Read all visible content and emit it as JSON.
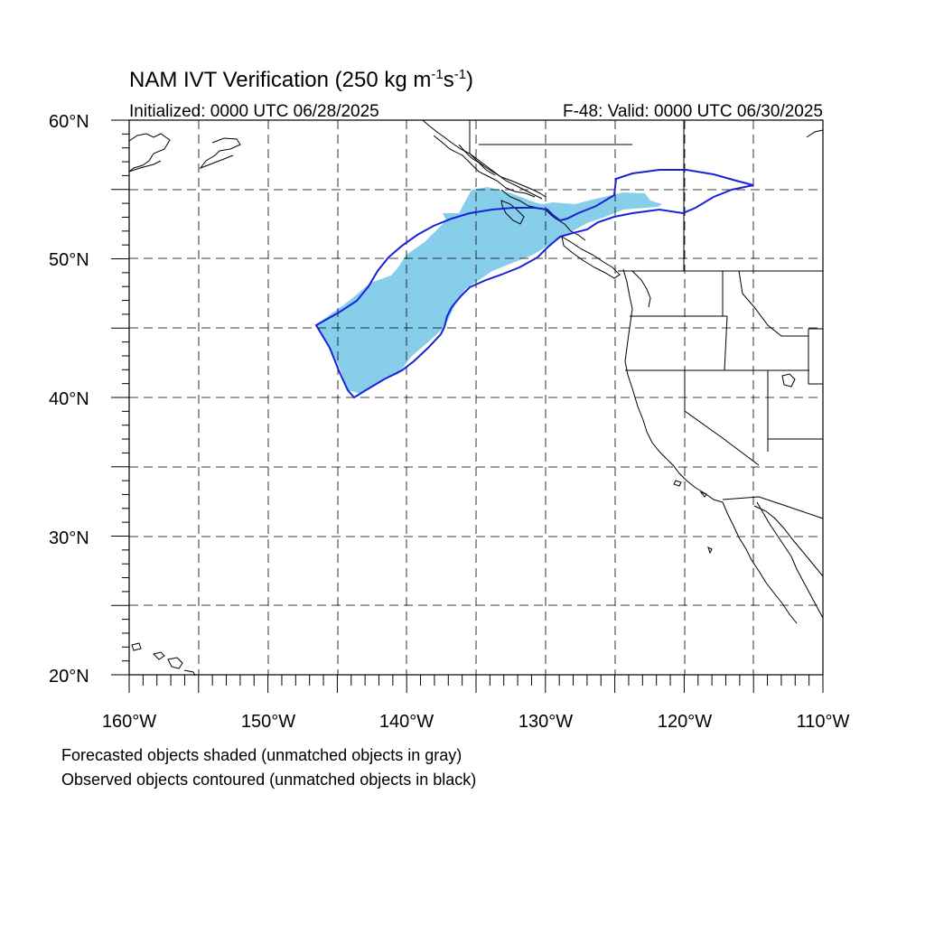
{
  "title_main": "NAM IVT Verification (250 kg m",
  "title_sup1": "-1",
  "title_mid": "s",
  "title_sup2": "-1",
  "title_end": ")",
  "initialized": "Initialized: 0000 UTC 06/28/2025",
  "valid": "F-48: Valid: 0000 UTC 06/30/2025",
  "lon_labels": [
    "160°W",
    "150°W",
    "140°W",
    "130°W",
    "120°W",
    "110°W"
  ],
  "lat_labels": [
    "60°N",
    "50°N",
    "40°N",
    "30°N",
    "20°N"
  ],
  "footnote_1": "Forecasted objects shaded (unmatched objects in gray)",
  "footnote_2": "Observed objects contoured (unmatched objects in black)",
  "colors": {
    "forecast_fill": "#87ceeb",
    "observed_contour": "#1a22d9",
    "coastline": "#000000",
    "grid": "#000000"
  },
  "map_extent": {
    "lon": [
      -160,
      -110
    ],
    "lat": [
      20,
      60
    ]
  }
}
